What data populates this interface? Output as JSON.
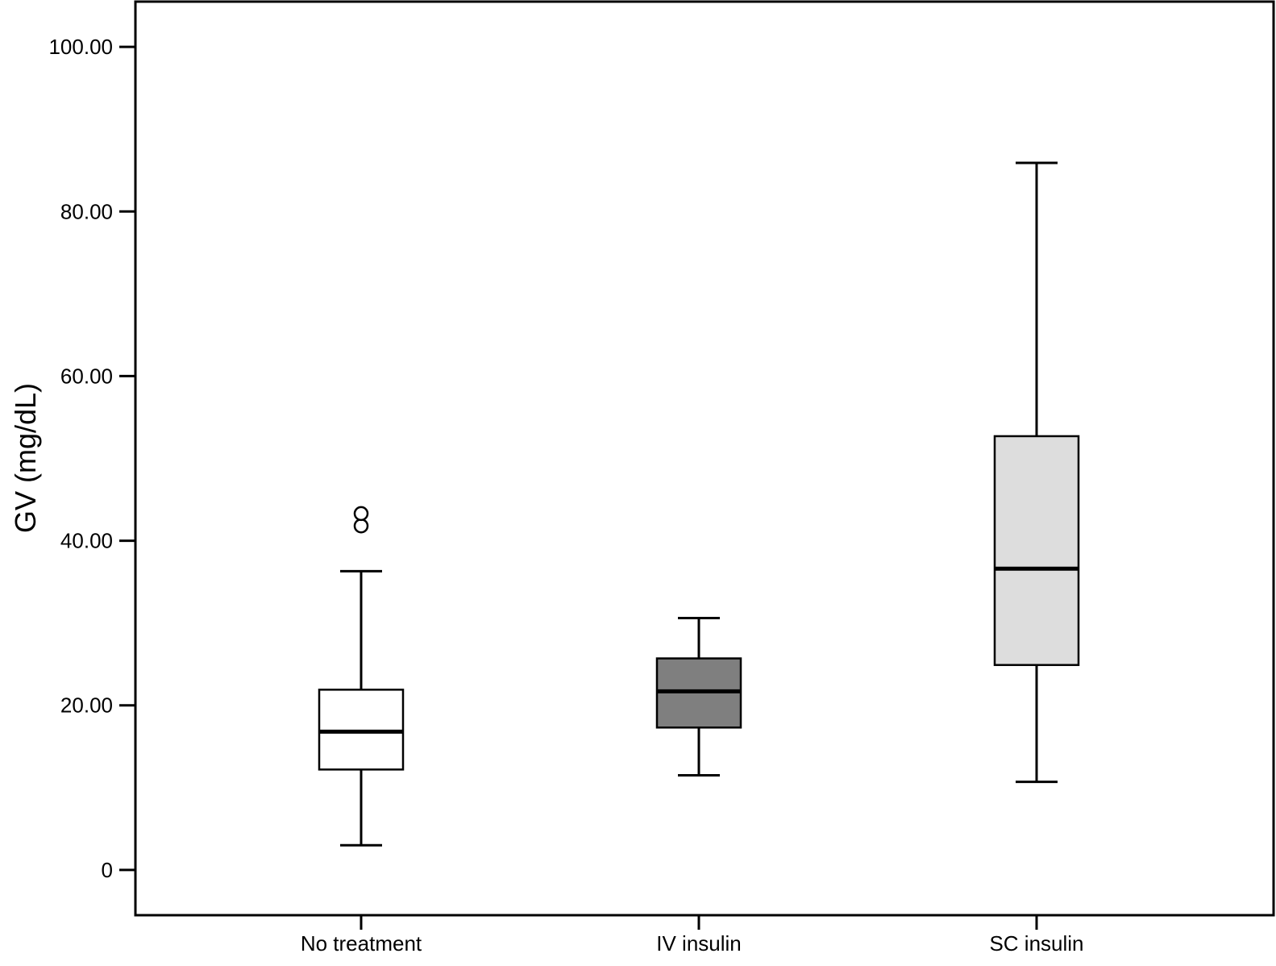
{
  "chart_data": {
    "type": "box",
    "ylabel": "GV (mg/dL)",
    "xlabel": "",
    "ylim": [
      -5.5,
      105.5
    ],
    "yticks": [
      0,
      20,
      40,
      60,
      80,
      100
    ],
    "ytick_labels": [
      "0",
      "20.00",
      "40.00",
      "60.00",
      "80.00",
      "100.00"
    ],
    "grid": false,
    "categories": [
      "No treatment",
      "IV insulin",
      "SC insulin"
    ],
    "boxes": [
      {
        "category": "No treatment",
        "whisker_low": 3.0,
        "q1": 12.2,
        "median": 16.8,
        "q3": 21.9,
        "whisker_high": 36.3,
        "outliers": [
          41.8,
          43.3
        ],
        "fill": "#ffffff"
      },
      {
        "category": "IV insulin",
        "whisker_low": 11.5,
        "q1": 17.3,
        "median": 21.7,
        "q3": 25.7,
        "whisker_high": 30.6,
        "outliers": [],
        "fill": "#7f7f7f"
      },
      {
        "category": "SC insulin",
        "whisker_low": 10.7,
        "q1": 24.9,
        "median": 36.6,
        "q3": 52.7,
        "whisker_high": 85.9,
        "outliers": [],
        "fill": "#dddddd"
      }
    ]
  }
}
